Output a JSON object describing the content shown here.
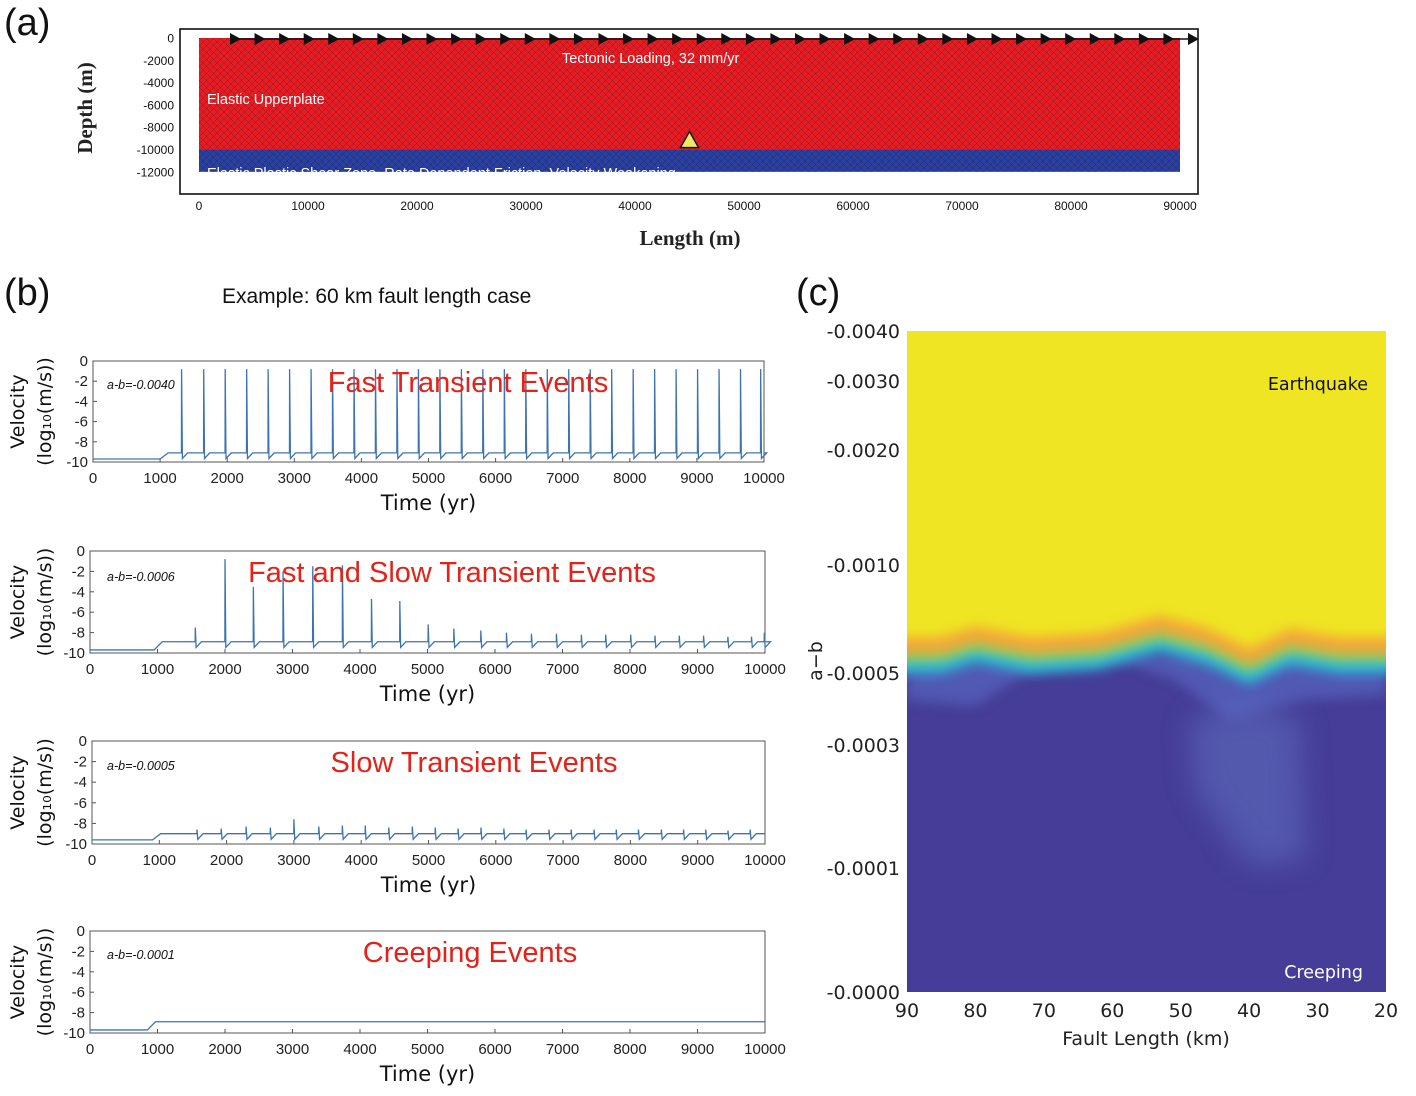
{
  "panels": {
    "a": {
      "label": "(a)"
    },
    "b": {
      "label": "(b)",
      "title": "Example: 60 km fault length case"
    },
    "c": {
      "label": "(c)"
    }
  },
  "colors": {
    "upperplate": "#e41d24",
    "shear_zone": "#2b3f9e",
    "trace": "#3d74b0",
    "event_text": "#e2231a",
    "heat_yellow": "#efe524",
    "heat_orange": "#f4a43a",
    "heat_cyan": "#2cb9d8",
    "heat_blue": "#453d97",
    "marker_fill": "#ecea64"
  },
  "chart_data": [
    {
      "type": "area",
      "panel": "a",
      "xlabel": "Length (m)",
      "ylabel": "Depth (m)",
      "xlim": [
        0,
        90000
      ],
      "ylim": [
        -13000,
        0
      ],
      "xticks": [
        0,
        10000,
        20000,
        30000,
        40000,
        50000,
        60000,
        70000,
        80000,
        90000
      ],
      "xtick_labels": [
        "0",
        "10000",
        "20000",
        "30000",
        "40000",
        "50000",
        "60000",
        "70000",
        "80000",
        "90000"
      ],
      "yticks": [
        0,
        -2000,
        -4000,
        -6000,
        -8000,
        -10000,
        -12000
      ],
      "ytick_labels": [
        "0",
        "-2000",
        "-4000",
        "-6000",
        "-8000",
        "-10000",
        "-12000"
      ],
      "layers": [
        {
          "name": "Elastic Upperplate",
          "top": 0,
          "bottom": -10000,
          "color": "#e41d24"
        },
        {
          "name": "Elastic Plastic Shear Zone, Rate Dependent Friction, Velocity Weakening",
          "top": -10000,
          "bottom": -12000,
          "color": "#2b3f9e"
        }
      ],
      "loading_label": "Tectonic Loading, 32 mm/yr",
      "observation_point": {
        "x": 45000,
        "y": -10000
      },
      "arrow_count": 40
    },
    {
      "type": "line",
      "panel": "b1",
      "annotation": "a-b=-0.0040",
      "event_label": "Fast Transient Events",
      "xlabel": "Time (yr)",
      "ylabel_line1": "Velocity",
      "ylabel_line2": "(log₁₀(m/s))",
      "xlim": [
        0,
        10000
      ],
      "ylim": [
        -10,
        0
      ],
      "xticks": [
        0,
        1000,
        2000,
        3000,
        4000,
        5000,
        6000,
        7000,
        8000,
        9000,
        10000
      ],
      "xtick_labels": [
        "0",
        "1000",
        "2000",
        "3000",
        "4000",
        "5000",
        "6000",
        "7000",
        "8000",
        "9000",
        "10000"
      ],
      "yticks": [
        0,
        -2,
        -4,
        -6,
        -8,
        -10
      ],
      "ytick_labels": [
        "0",
        "-2",
        "-4",
        "-6",
        "-8",
        "-10"
      ],
      "baseline_before": -9.7,
      "onset_year": 1000,
      "baseline_after": -9.1,
      "events": [
        {
          "t": 1320,
          "v": -0.8
        },
        {
          "t": 1650,
          "v": -0.8
        },
        {
          "t": 1970,
          "v": -0.8
        },
        {
          "t": 2290,
          "v": -0.8
        },
        {
          "t": 2610,
          "v": -0.8
        },
        {
          "t": 2930,
          "v": -0.8
        },
        {
          "t": 3250,
          "v": -0.8
        },
        {
          "t": 3570,
          "v": -0.8
        },
        {
          "t": 3890,
          "v": -0.8
        },
        {
          "t": 4210,
          "v": -0.8
        },
        {
          "t": 4530,
          "v": -0.8
        },
        {
          "t": 4850,
          "v": -0.8
        },
        {
          "t": 5170,
          "v": -0.8
        },
        {
          "t": 5490,
          "v": -0.8
        },
        {
          "t": 5810,
          "v": -0.8
        },
        {
          "t": 6130,
          "v": -0.8
        },
        {
          "t": 6450,
          "v": -0.8
        },
        {
          "t": 6770,
          "v": -0.8
        },
        {
          "t": 7090,
          "v": -0.8
        },
        {
          "t": 7410,
          "v": -0.8
        },
        {
          "t": 7730,
          "v": -0.8
        },
        {
          "t": 8050,
          "v": -0.8
        },
        {
          "t": 8370,
          "v": -0.8
        },
        {
          "t": 8690,
          "v": -0.8
        },
        {
          "t": 9010,
          "v": -0.8
        },
        {
          "t": 9330,
          "v": -0.8
        },
        {
          "t": 9650,
          "v": -0.8
        },
        {
          "t": 9950,
          "v": -0.8
        }
      ]
    },
    {
      "type": "line",
      "panel": "b2",
      "annotation": "a-b=-0.0006",
      "event_label": "Fast and Slow Transient Events",
      "xlabel": "Time (yr)",
      "ylabel_line1": "Velocity",
      "ylabel_line2": "(log₁₀(m/s))",
      "xlim": [
        0,
        10000
      ],
      "ylim": [
        -10,
        0
      ],
      "xticks": [
        0,
        1000,
        2000,
        3000,
        4000,
        5000,
        6000,
        7000,
        8000,
        9000,
        10000
      ],
      "xtick_labels": [
        "0",
        "1000",
        "2000",
        "3000",
        "4000",
        "5000",
        "6000",
        "7000",
        "8000",
        "9000",
        "10000"
      ],
      "yticks": [
        0,
        -2,
        -4,
        -6,
        -8,
        -10
      ],
      "ytick_labels": [
        "0",
        "-2",
        "-4",
        "-6",
        "-8",
        "-10"
      ],
      "baseline_before": -9.7,
      "onset_year": 950,
      "baseline_after": -8.9,
      "events": [
        {
          "t": 1560,
          "v": -7.5
        },
        {
          "t": 2000,
          "v": -0.8
        },
        {
          "t": 2420,
          "v": -3.5
        },
        {
          "t": 2860,
          "v": -2.0
        },
        {
          "t": 3300,
          "v": -1.5
        },
        {
          "t": 3740,
          "v": -1.4
        },
        {
          "t": 4170,
          "v": -4.7
        },
        {
          "t": 4590,
          "v": -4.9
        },
        {
          "t": 5010,
          "v": -7.2
        },
        {
          "t": 5390,
          "v": -7.6
        },
        {
          "t": 5790,
          "v": -7.8
        },
        {
          "t": 6170,
          "v": -8.0
        },
        {
          "t": 6540,
          "v": -8.1
        },
        {
          "t": 6910,
          "v": -8.1
        },
        {
          "t": 7280,
          "v": -8.2
        },
        {
          "t": 7640,
          "v": -8.2
        },
        {
          "t": 8010,
          "v": -8.2
        },
        {
          "t": 8370,
          "v": -8.3
        },
        {
          "t": 8730,
          "v": -8.3
        },
        {
          "t": 9090,
          "v": -8.3
        },
        {
          "t": 9450,
          "v": -8.4
        },
        {
          "t": 9800,
          "v": -8.4
        },
        {
          "t": 9990,
          "v": -8.0
        }
      ]
    },
    {
      "type": "line",
      "panel": "b3",
      "annotation": "a-b=-0.0005",
      "event_label": "Slow Transient Events",
      "xlabel": "Time (yr)",
      "ylabel_line1": "Velocity",
      "ylabel_line2": "(log₁₀(m/s))",
      "xlim": [
        0,
        10000
      ],
      "ylim": [
        -10,
        0
      ],
      "xticks": [
        0,
        1000,
        2000,
        3000,
        4000,
        5000,
        6000,
        7000,
        8000,
        9000,
        10000
      ],
      "xtick_labels": [
        "0",
        "1000",
        "2000",
        "3000",
        "4000",
        "5000",
        "6000",
        "7000",
        "8000",
        "9000",
        "10000"
      ],
      "yticks": [
        0,
        -2,
        -4,
        -6,
        -8,
        -10
      ],
      "ytick_labels": [
        "0",
        "-2",
        "-4",
        "-6",
        "-8",
        "-10"
      ],
      "baseline_before": -9.6,
      "onset_year": 900,
      "baseline_after": -9.0,
      "events": [
        {
          "t": 1560,
          "v": -8.6
        },
        {
          "t": 1920,
          "v": -8.5
        },
        {
          "t": 2290,
          "v": -8.3
        },
        {
          "t": 2650,
          "v": -8.4
        },
        {
          "t": 3000,
          "v": -7.6
        },
        {
          "t": 3370,
          "v": -8.3
        },
        {
          "t": 3720,
          "v": -8.2
        },
        {
          "t": 4060,
          "v": -8.2
        },
        {
          "t": 4410,
          "v": -8.4
        },
        {
          "t": 4760,
          "v": -8.3
        },
        {
          "t": 5100,
          "v": -8.4
        },
        {
          "t": 5440,
          "v": -8.5
        },
        {
          "t": 5780,
          "v": -8.4
        },
        {
          "t": 6120,
          "v": -8.5
        },
        {
          "t": 6450,
          "v": -8.6
        },
        {
          "t": 6790,
          "v": -8.6
        },
        {
          "t": 7120,
          "v": -8.6
        },
        {
          "t": 7460,
          "v": -8.6
        },
        {
          "t": 7790,
          "v": -8.6
        },
        {
          "t": 8120,
          "v": -8.6
        },
        {
          "t": 8460,
          "v": -8.6
        },
        {
          "t": 8790,
          "v": -8.6
        },
        {
          "t": 9120,
          "v": -8.6
        },
        {
          "t": 9450,
          "v": -8.7
        },
        {
          "t": 9780,
          "v": -8.6
        }
      ]
    },
    {
      "type": "line",
      "panel": "b4",
      "annotation": "a-b=-0.0001",
      "event_label": "Creeping Events",
      "xlabel": "Time (yr)",
      "ylabel_line1": "Velocity",
      "ylabel_line2": "(log₁₀(m/s))",
      "xlim": [
        0,
        10000
      ],
      "ylim": [
        -10,
        0
      ],
      "xticks": [
        0,
        1000,
        2000,
        3000,
        4000,
        5000,
        6000,
        7000,
        8000,
        9000,
        10000
      ],
      "xtick_labels": [
        "0",
        "1000",
        "2000",
        "3000",
        "4000",
        "5000",
        "6000",
        "7000",
        "8000",
        "9000",
        "10000"
      ],
      "yticks": [
        0,
        -2,
        -4,
        -6,
        -8,
        -10
      ],
      "ytick_labels": [
        "0",
        "-2",
        "-4",
        "-6",
        "-8",
        "-10"
      ],
      "baseline_before": -9.7,
      "onset_year": 850,
      "baseline_after": -8.9,
      "events": []
    },
    {
      "type": "heatmap",
      "panel": "c",
      "xlabel": "Fault Length (km)",
      "ylabel": "a−b",
      "x_categories": [
        90,
        80,
        70,
        60,
        50,
        40,
        30,
        20
      ],
      "xtick_labels": [
        "90",
        "80",
        "70",
        "60",
        "50",
        "40",
        "30",
        "20"
      ],
      "ytick_labels": [
        "-0.0040",
        "-0.0030",
        "-0.0020",
        "-0.0010",
        "-0.0005",
        "-0.0003",
        "-0.0001",
        "-0.0000"
      ],
      "region_labels": {
        "top": "Earthquake",
        "bottom": "Creeping"
      },
      "boundary": [
        {
          "fault_length": 90,
          "ab": -0.0006
        },
        {
          "fault_length": 85,
          "ab": -0.0006
        },
        {
          "fault_length": 80,
          "ab": -0.00065
        },
        {
          "fault_length": 72,
          "ab": -0.0006
        },
        {
          "fault_length": 62,
          "ab": -0.00062
        },
        {
          "fault_length": 53,
          "ab": -0.0007
        },
        {
          "fault_length": 46,
          "ab": -0.00064
        },
        {
          "fault_length": 40,
          "ab": -0.00055
        },
        {
          "fault_length": 34,
          "ab": -0.00064
        },
        {
          "fault_length": 27,
          "ab": -0.0006
        },
        {
          "fault_length": 20,
          "ab": -0.0006
        }
      ]
    }
  ]
}
